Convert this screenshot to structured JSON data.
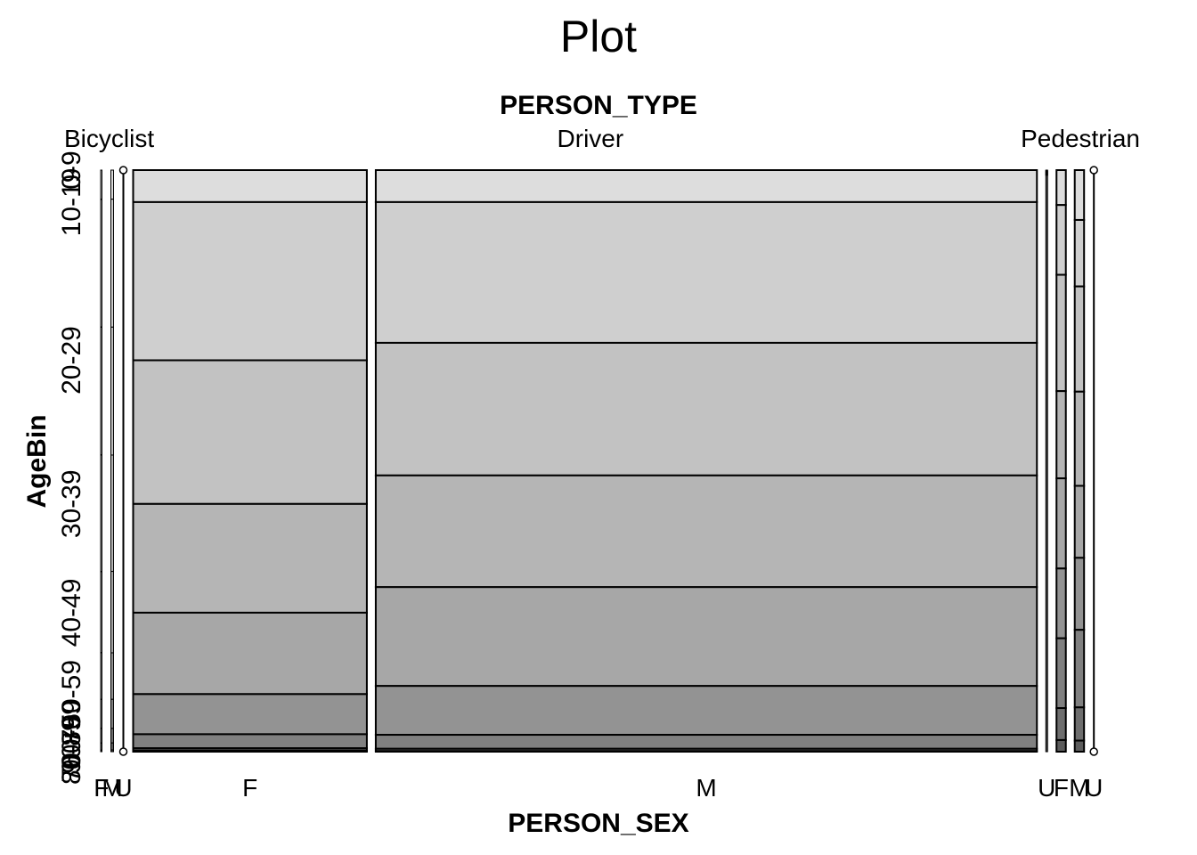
{
  "chart_data": {
    "type": "mosaic",
    "title": "Plot",
    "top_variable": "PERSON_TYPE",
    "bottom_variable": "PERSON_SEX",
    "left_variable": "AgeBin",
    "person_types": [
      {
        "label": "Bicyclist",
        "sexes": [
          {
            "label": "F",
            "share": 0.0003,
            "empty": false,
            "age_props": [
              0.05,
              0.22,
              0.22,
              0.2,
              0.14,
              0.08,
              0.05,
              0.025,
              0.012,
              0.003
            ]
          },
          {
            "label": "M",
            "share": 0.003,
            "empty": false,
            "age_props": [
              0.05,
              0.22,
              0.22,
              0.2,
              0.14,
              0.08,
              0.05,
              0.025,
              0.012,
              0.003
            ]
          },
          {
            "label": "U",
            "share": 0.0,
            "empty": true,
            "age_props": []
          }
        ]
      },
      {
        "label": "Driver",
        "sexes": [
          {
            "label": "F",
            "share": 0.263,
            "empty": false,
            "age_props": [
              0.055,
              0.272,
              0.247,
              0.187,
              0.14,
              0.069,
              0.024,
              0.004,
              0.001,
              0.001
            ]
          },
          {
            "label": "M",
            "share": 0.744,
            "empty": false,
            "age_props": [
              0.055,
              0.242,
              0.228,
              0.192,
              0.17,
              0.084,
              0.024,
              0.004,
              0.001,
              0.0
            ]
          },
          {
            "label": "U",
            "share": 0.002,
            "empty": false,
            "age_props": [
              0.001,
              0.001,
              0.001,
              0.001,
              0.001,
              0.001,
              0.001,
              0.001,
              0.001,
              0.991
            ]
          }
        ]
      },
      {
        "label": "Pedestrian",
        "sexes": [
          {
            "label": "F",
            "share": 0.0105,
            "empty": false,
            "age_props": [
              0.06,
              0.12,
              0.2,
              0.15,
              0.155,
              0.12,
              0.12,
              0.055,
              0.02,
              0.0
            ]
          },
          {
            "label": "M",
            "share": 0.0105,
            "empty": false,
            "age_props": [
              0.09,
              0.12,
              0.19,
              0.17,
              0.13,
              0.13,
              0.14,
              0.06,
              0.02,
              0.0
            ]
          },
          {
            "label": "U",
            "share": 0.0,
            "empty": true,
            "age_props": []
          }
        ]
      }
    ],
    "age_bins": [
      "0-9",
      "10-19",
      "20-29",
      "30-39",
      "40-49",
      "50-59",
      "60-69",
      "70-79",
      "80-89",
      "90+"
    ],
    "age_tick_labels": [
      {
        "label": "0-9",
        "position": 0.0
      },
      {
        "label": "10-19",
        "position": 0.055
      },
      {
        "label": "20-29",
        "position": 0.327
      },
      {
        "label": "30-39",
        "position": 0.574
      },
      {
        "label": "40-49",
        "position": 0.761
      },
      {
        "label": "50-59",
        "position": 0.901
      },
      {
        "label": "60-69",
        "position": 0.97
      },
      {
        "label": "70-79",
        "position": 0.994
      },
      {
        "label": "80-89",
        "position": 0.998
      },
      {
        "label": "90+",
        "position": 0.999
      }
    ],
    "bottom_labels": [
      {
        "label": "F",
        "type_index": 0,
        "sex_index": 0
      },
      {
        "label": "M",
        "type_index": 0,
        "sex_index": 1
      },
      {
        "label": "U",
        "type_index": 0,
        "sex_index": 2
      },
      {
        "label": "F",
        "type_index": 1,
        "sex_index": 0
      },
      {
        "label": "M",
        "type_index": 1,
        "sex_index": 1
      },
      {
        "label": "U",
        "type_index": 1,
        "sex_index": 2
      },
      {
        "label": "F",
        "type_index": 2,
        "sex_index": 0
      },
      {
        "label": "M",
        "type_index": 2,
        "sex_index": 1
      },
      {
        "label": "U",
        "type_index": 2,
        "sex_index": 2
      }
    ],
    "age_fill_colors": [
      "#dddddd",
      "#cfcfcf",
      "#c2c2c2",
      "#b5b5b5",
      "#a7a7a7",
      "#939393",
      "#808080",
      "#6e6e6e",
      "#5c5c5c",
      "#4a4a4a"
    ],
    "outline_color": "#000000"
  }
}
